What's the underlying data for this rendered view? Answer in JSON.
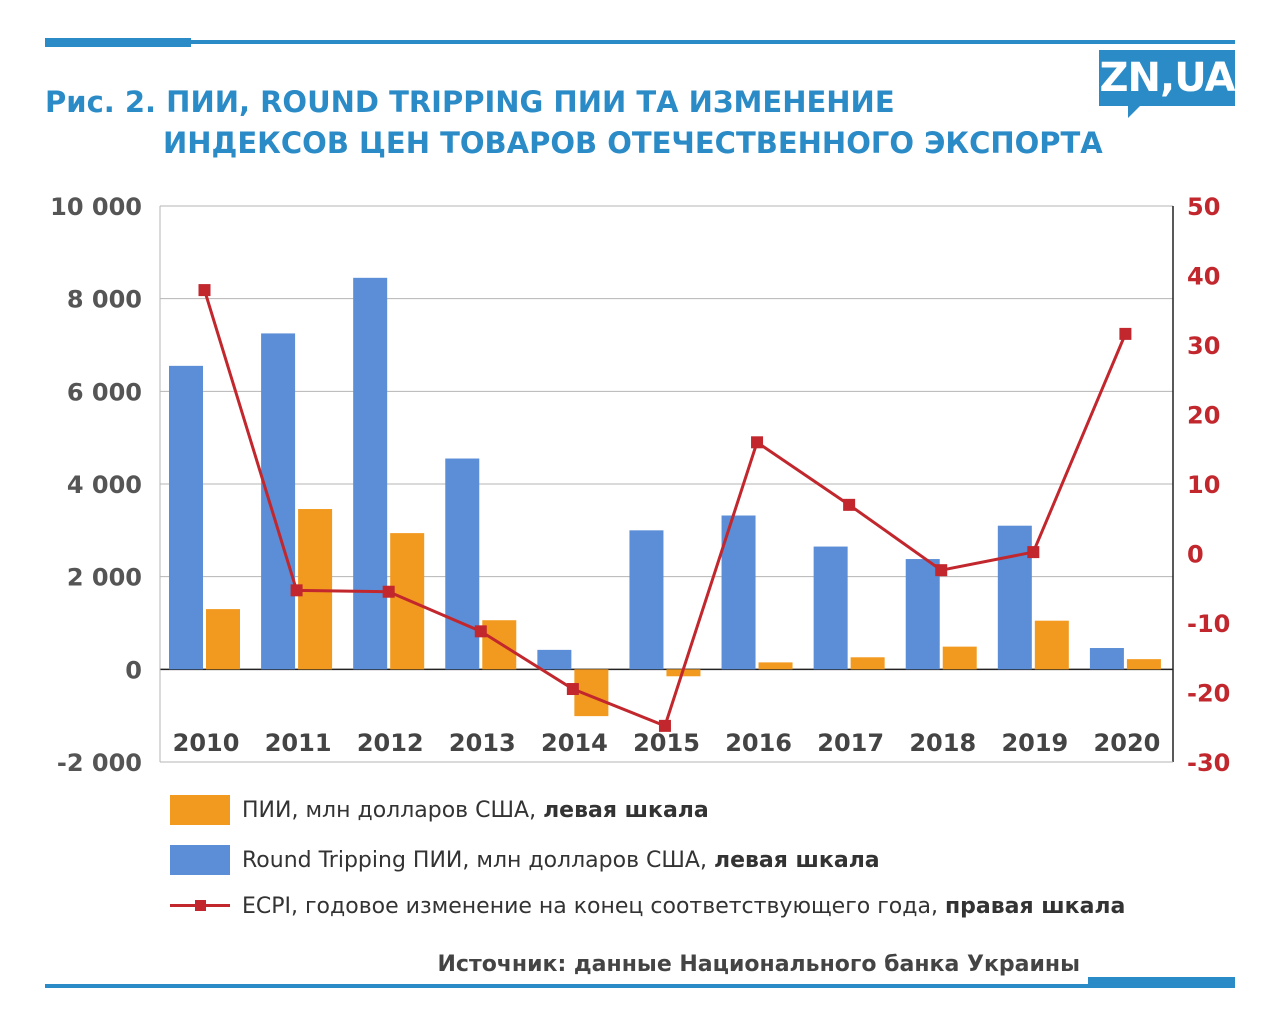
{
  "header": {
    "title_line1": "Рис. 2. ПИИ, ROUND TRIPPING ПИИ ТА ИЗМЕНЕНИЕ",
    "title_line2": "ИНДЕКСОВ ЦЕН ТОВАРОВ ОТЕЧЕСТВЕННОГО ЭКСПОРТА",
    "logo": "ZN,UA"
  },
  "legend": {
    "fdi": {
      "label": "ПИИ, млн долларов США, ",
      "scale": "левая шкала"
    },
    "round_tripping": {
      "label": "Round Tripping ПИИ, млн долларов США, ",
      "scale": "левая шкала"
    },
    "ecpi": {
      "label": "ECPI, годовое изменение на конец соответствующего года, ",
      "scale": "правая шкала"
    }
  },
  "source": "Источник: данные Национального банка Украины",
  "colors": {
    "title": "#2a8bc7",
    "round_tripping": "#5b8ed6",
    "fdi": "#f29a1f",
    "ecpi": "#c1272d",
    "grid": "#b5b5b5",
    "left_axis_text": "#555555"
  },
  "chart_data": {
    "type": "bar",
    "categories": [
      "2010",
      "2011",
      "2012",
      "2013",
      "2014",
      "2015",
      "2016",
      "2017",
      "2018",
      "2019",
      "2020"
    ],
    "series": [
      {
        "name": "Round Tripping ПИИ, млн долларов США",
        "axis": "left",
        "type": "bar",
        "values": [
          6550,
          7250,
          8450,
          4550,
          420,
          3000,
          3320,
          2650,
          2380,
          3100,
          460
        ]
      },
      {
        "name": "ПИИ, млн долларов США",
        "axis": "left",
        "type": "bar",
        "values": [
          1300,
          3460,
          2940,
          1060,
          -1010,
          -150,
          150,
          260,
          490,
          1050,
          220
        ]
      },
      {
        "name": "ECPI, годовое изменение на конец соответствующего года",
        "axis": "right",
        "type": "line",
        "values": [
          37.9,
          -5.3,
          -5.5,
          -11.2,
          -19.5,
          -24.8,
          16,
          7,
          -2.4,
          0.2,
          31.6
        ]
      }
    ],
    "y_left": {
      "range": [
        -2000,
        10000
      ],
      "ticks": [
        -2000,
        0,
        2000,
        4000,
        6000,
        8000,
        10000
      ],
      "tick_labels": [
        "-2 000",
        "0",
        "2 000",
        "4 000",
        "6 000",
        "8 000",
        "10 000"
      ]
    },
    "y_right": {
      "range": [
        -30,
        50
      ],
      "ticks": [
        -30,
        -20,
        -10,
        0,
        10,
        20,
        30,
        40,
        50
      ],
      "tick_labels": [
        "-30",
        "-20",
        "-10",
        "0",
        "10",
        "20",
        "30",
        "40",
        "50"
      ]
    },
    "grid": true,
    "legend_position": "bottom"
  }
}
